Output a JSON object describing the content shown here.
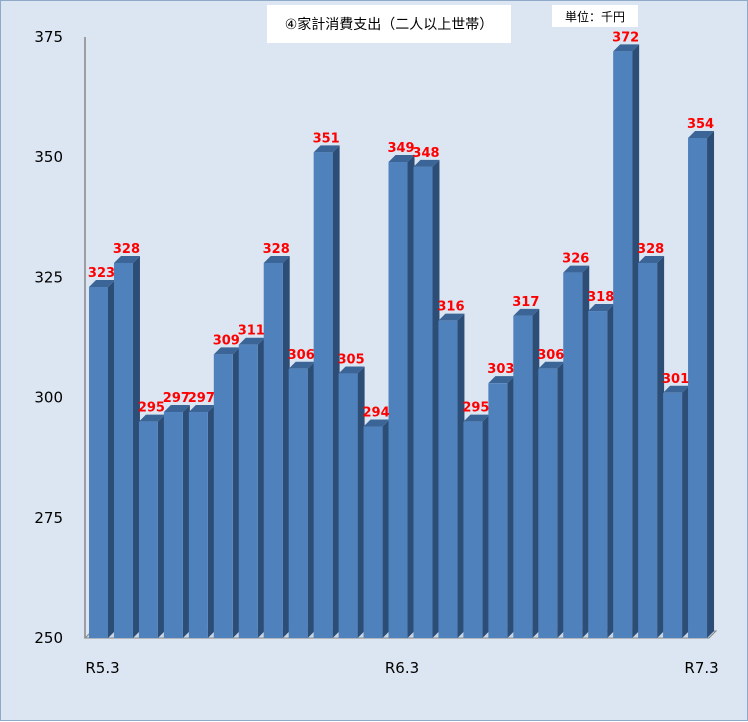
{
  "chart_data": {
    "type": "bar",
    "title": "④家計消費支出（二人以上世帯）",
    "unit_label": "単位：千円",
    "categories": [
      "R5.3",
      "",
      "",
      "",
      "",
      "",
      "",
      "",
      "",
      "",
      "",
      "",
      "R6.3",
      "",
      "",
      "",
      "",
      "",
      "",
      "",
      "",
      "",
      "",
      "",
      "R7.3"
    ],
    "values": [
      323,
      328,
      295,
      297,
      297,
      309,
      311,
      328,
      306,
      351,
      305,
      294,
      349,
      348,
      316,
      295,
      303,
      317,
      306,
      326,
      318,
      372,
      328,
      301,
      354
    ],
    "ylim": [
      250,
      375
    ],
    "yticks": [
      250,
      275,
      300,
      325,
      350,
      375
    ],
    "xlabel": "",
    "ylabel": "",
    "grid": false,
    "legend": "none",
    "colors": {
      "bar_front": "#4f81bd",
      "bar_side": "#2c4d75",
      "bar_top": "#3b6597",
      "label": "#ff0000",
      "background": "#dce6f2"
    }
  }
}
